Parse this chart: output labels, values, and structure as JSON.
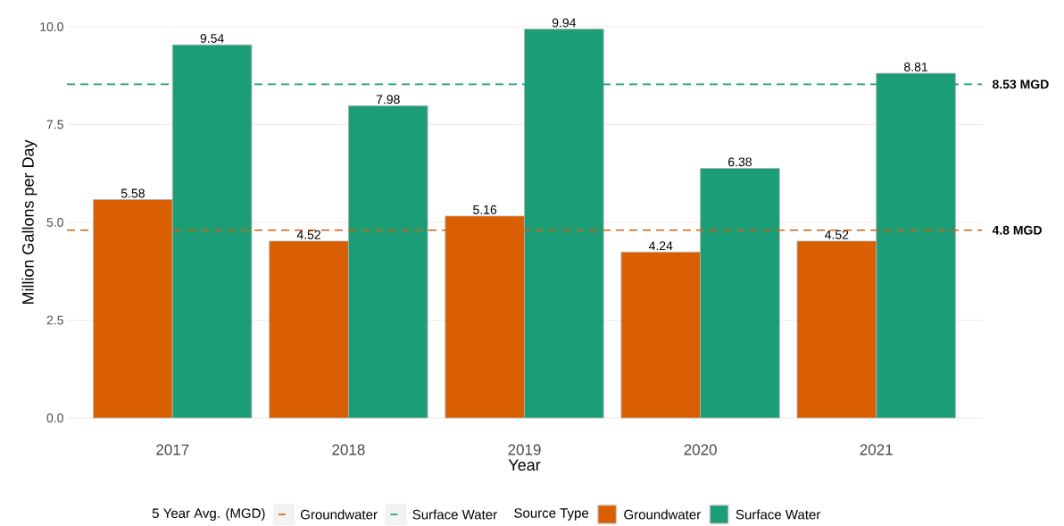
{
  "chart_data": {
    "type": "bar",
    "xlabel": "Year",
    "ylabel": "Million Gallons per Day",
    "legend_title": "Source Type",
    "categories": [
      "2017",
      "2018",
      "2019",
      "2020",
      "2021"
    ],
    "series": [
      {
        "name": "Groundwater",
        "color": "#d95f02",
        "values": [
          5.58,
          4.52,
          5.16,
          4.24,
          4.52
        ]
      },
      {
        "name": "Surface Water",
        "color": "#1b9e77",
        "values": [
          9.54,
          7.98,
          9.94,
          6.38,
          8.81
        ]
      }
    ],
    "ylim": [
      0,
      10
    ],
    "yticks": [
      {
        "value": 0,
        "label": "0.0"
      },
      {
        "value": 2.5,
        "label": "2.5"
      },
      {
        "value": 5,
        "label": "5.0"
      },
      {
        "value": 7.5,
        "label": "7.5"
      },
      {
        "value": 10,
        "label": "10.0"
      }
    ],
    "ref_lines": [
      {
        "axis": "y",
        "value": 8.53,
        "label": "8.53  MGD",
        "color": "#1b9e77",
        "line_style": "dashed"
      },
      {
        "axis": "y",
        "value": 4.8,
        "label": "4.8  MGD",
        "color": "#d95f02",
        "line_style": "dashed"
      }
    ],
    "annotations": [
      "5 Year Avg. (MGD)",
      "Groundwater",
      "Surface Water"
    ],
    "data_labels": true,
    "grid": "y",
    "legend": "bottom"
  }
}
